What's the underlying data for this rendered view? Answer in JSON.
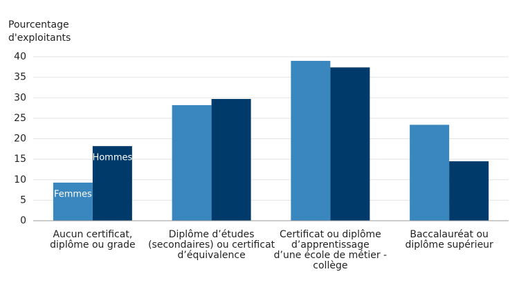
{
  "chart_data": {
    "type": "bar",
    "y_label": [
      "Pourcentage",
      "d'exploitants"
    ],
    "categories": [
      [
        "Aucun certificat,",
        "diplôme ou grade"
      ],
      [
        "Diplôme d’études",
        "(secondaires) ou certificat",
        "d’équivalence"
      ],
      [
        "Certificat ou diplôme",
        "d’apprentissage",
        "d’une école de métier -",
        "collège"
      ],
      [
        "Baccalauréat ou",
        "diplôme supérieur"
      ]
    ],
    "series": [
      {
        "name": "Femmes",
        "color": "#3a87bf",
        "values": [
          9.3,
          28.2,
          39.0,
          23.4
        ]
      },
      {
        "name": "Hommes",
        "color": "#003a6b",
        "values": [
          18.2,
          29.7,
          37.4,
          14.5
        ]
      }
    ],
    "ylim": [
      0,
      40
    ],
    "yticks": [
      0,
      5,
      10,
      15,
      20,
      25,
      30,
      35,
      40
    ],
    "grid": true
  }
}
